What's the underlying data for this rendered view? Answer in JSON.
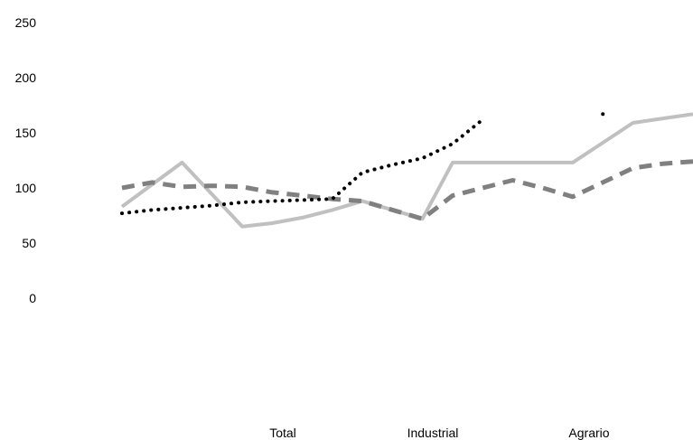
{
  "chart_data": {
    "type": "line",
    "title": "",
    "xlabel": "",
    "ylabel": "",
    "ylim": [
      0,
      250
    ],
    "yticks": [
      0,
      50,
      100,
      150,
      200,
      250
    ],
    "grid": false,
    "legend_position": "bottom",
    "x": [
      0,
      1,
      2,
      3,
      4,
      5,
      6,
      7,
      8,
      9,
      10,
      11,
      12,
      13,
      14,
      15,
      16,
      17,
      18,
      19
    ],
    "series": [
      {
        "name": "Total",
        "color": "#000000",
        "dash": "dotted",
        "values": [
          77,
          80,
          82,
          84,
          87,
          88,
          89,
          90,
          114,
          121,
          127,
          140,
          162,
          null,
          null,
          null,
          167,
          null,
          null,
          null
        ]
      },
      {
        "name": "Industrial",
        "color": "#808080",
        "dash": "dashed",
        "values": [
          100,
          105,
          101,
          102,
          101,
          96,
          93,
          90,
          88,
          80,
          72,
          93,
          100,
          107,
          100,
          92,
          105,
          118,
          122,
          124
        ]
      },
      {
        "name": "Agrario",
        "color": "#c0c0c0",
        "dash": "solid",
        "values": [
          83,
          103,
          123,
          94,
          65,
          68,
          73,
          80,
          88,
          80,
          72,
          123,
          123,
          123,
          123,
          123,
          141,
          159,
          163,
          167
        ]
      }
    ]
  }
}
